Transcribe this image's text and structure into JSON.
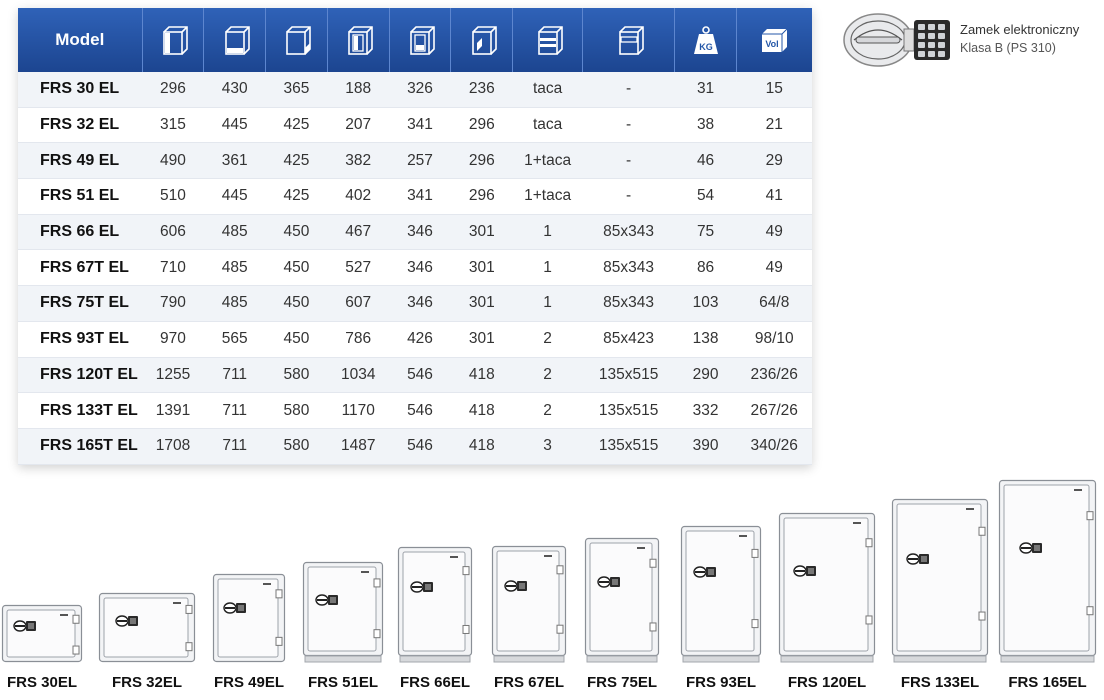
{
  "table": {
    "header_model": "Model",
    "columns": [
      {
        "icon": "external-height-icon"
      },
      {
        "icon": "external-width-icon"
      },
      {
        "icon": "external-depth-icon"
      },
      {
        "icon": "internal-height-icon"
      },
      {
        "icon": "internal-width-icon"
      },
      {
        "icon": "internal-depth-icon"
      },
      {
        "icon": "shelves-icon"
      },
      {
        "icon": "drawer-icon"
      },
      {
        "icon": "weight-icon",
        "text": "KG"
      },
      {
        "icon": "volume-icon",
        "text": "Vol"
      }
    ],
    "rows": [
      {
        "model": "FRS 30 EL",
        "cells": [
          "296",
          "430",
          "365",
          "188",
          "326",
          "236",
          "taca",
          "-",
          "31",
          "15"
        ]
      },
      {
        "model": "FRS 32 EL",
        "cells": [
          "315",
          "445",
          "425",
          "207",
          "341",
          "296",
          "taca",
          "-",
          "38",
          "21"
        ]
      },
      {
        "model": "FRS 49 EL",
        "cells": [
          "490",
          "361",
          "425",
          "382",
          "257",
          "296",
          "1+taca",
          "-",
          "46",
          "29"
        ]
      },
      {
        "model": "FRS 51 EL",
        "cells": [
          "510",
          "445",
          "425",
          "402",
          "341",
          "296",
          "1+taca",
          "-",
          "54",
          "41"
        ]
      },
      {
        "model": "FRS 66 EL",
        "cells": [
          "606",
          "485",
          "450",
          "467",
          "346",
          "301",
          "1",
          "85x343",
          "75",
          "49"
        ]
      },
      {
        "model": "FRS 67T EL",
        "cells": [
          "710",
          "485",
          "450",
          "527",
          "346",
          "301",
          "1",
          "85x343",
          "86",
          "49"
        ]
      },
      {
        "model": "FRS 75T EL",
        "cells": [
          "790",
          "485",
          "450",
          "607",
          "346",
          "301",
          "1",
          "85x343",
          "103",
          "64/8"
        ]
      },
      {
        "model": "FRS 93T EL",
        "cells": [
          "970",
          "565",
          "450",
          "786",
          "426",
          "301",
          "2",
          "85x423",
          "138",
          "98/10"
        ]
      },
      {
        "model": "FRS 120T EL",
        "cells": [
          "1255",
          "711",
          "580",
          "1034",
          "546",
          "418",
          "2",
          "135x515",
          "290",
          "236/26"
        ]
      },
      {
        "model": "FRS 133T EL",
        "cells": [
          "1391",
          "711",
          "580",
          "1170",
          "546",
          "418",
          "2",
          "135x515",
          "332",
          "267/26"
        ]
      },
      {
        "model": "FRS 165T EL",
        "cells": [
          "1708",
          "711",
          "580",
          "1487",
          "546",
          "418",
          "3",
          "135x515",
          "390",
          "340/26"
        ]
      }
    ]
  },
  "lock": {
    "title": "Zamek elektroniczny",
    "class": "Klasa B (PS 310)",
    "icon": "electronic-lock-icon"
  },
  "safes": [
    {
      "label": "FRS 30EL",
      "plinth": false
    },
    {
      "label": "FRS 32EL",
      "plinth": false
    },
    {
      "label": "FRS 49EL",
      "plinth": false
    },
    {
      "label": "FRS 51EL",
      "plinth": true
    },
    {
      "label": "FRS 66EL",
      "plinth": true
    },
    {
      "label": "FRS 67EL",
      "plinth": true
    },
    {
      "label": "FRS 75EL",
      "plinth": true
    },
    {
      "label": "FRS 93EL",
      "plinth": true
    },
    {
      "label": "FRS 120EL",
      "plinth": true
    },
    {
      "label": "FRS 133EL",
      "plinth": true
    },
    {
      "label": "FRS 165EL",
      "plinth": true
    }
  ],
  "colors": {
    "header_blue": "#2457a8",
    "safe_body": "#f3f4f6",
    "safe_outline": "#8a8f96",
    "lock_dark": "#2a2a2a"
  }
}
